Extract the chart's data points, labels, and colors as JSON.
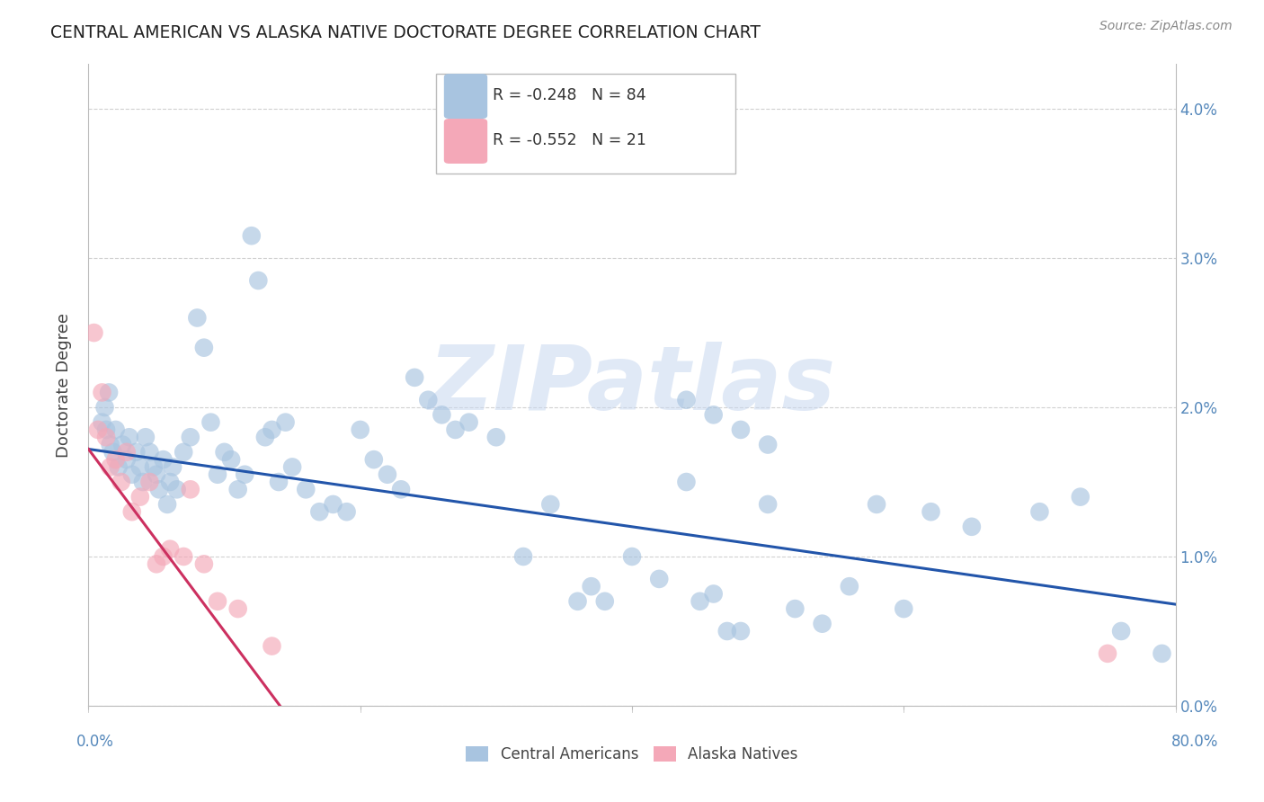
{
  "title": "CENTRAL AMERICAN VS ALASKA NATIVE DOCTORATE DEGREE CORRELATION CHART",
  "source": "Source: ZipAtlas.com",
  "ylabel_label": "Doctorate Degree",
  "xlim": [
    0,
    80
  ],
  "ylim": [
    0,
    4.3
  ],
  "xtick_vals": [
    0,
    20,
    40,
    60,
    80
  ],
  "ytick_vals": [
    0,
    1,
    2,
    3,
    4
  ],
  "legend_blue_R": "-0.248",
  "legend_blue_N": "84",
  "legend_pink_R": "-0.552",
  "legend_pink_N": "21",
  "blue_color": "#a8c4e0",
  "pink_color": "#f4a8b8",
  "blue_line_color": "#2255aa",
  "pink_line_color": "#cc3060",
  "tick_color": "#5588bb",
  "watermark_color": "#c8d8f0",
  "blue_scatter_x": [
    1.0,
    1.2,
    1.3,
    1.5,
    1.6,
    1.8,
    2.0,
    2.2,
    2.5,
    2.8,
    3.0,
    3.2,
    3.5,
    3.8,
    4.0,
    4.2,
    4.5,
    4.8,
    5.0,
    5.2,
    5.5,
    5.8,
    6.0,
    6.2,
    6.5,
    7.0,
    7.5,
    8.0,
    8.5,
    9.0,
    9.5,
    10.0,
    10.5,
    11.0,
    11.5,
    12.0,
    12.5,
    13.0,
    13.5,
    14.0,
    14.5,
    15.0,
    16.0,
    17.0,
    18.0,
    19.0,
    20.0,
    21.0,
    22.0,
    23.0,
    24.0,
    25.0,
    26.0,
    27.0,
    28.0,
    30.0,
    32.0,
    34.0,
    36.0,
    37.0,
    38.0,
    40.0,
    42.0,
    44.0,
    45.0,
    46.0,
    47.0,
    48.0,
    50.0,
    52.0,
    54.0,
    56.0,
    58.0,
    60.0,
    62.0,
    65.0,
    70.0,
    73.0,
    76.0,
    79.0,
    44.0,
    46.0,
    48.0,
    50.0
  ],
  "blue_scatter_y": [
    1.9,
    2.0,
    1.85,
    2.1,
    1.75,
    1.7,
    1.85,
    1.6,
    1.75,
    1.65,
    1.8,
    1.55,
    1.7,
    1.6,
    1.5,
    1.8,
    1.7,
    1.6,
    1.55,
    1.45,
    1.65,
    1.35,
    1.5,
    1.6,
    1.45,
    1.7,
    1.8,
    2.6,
    2.4,
    1.9,
    1.55,
    1.7,
    1.65,
    1.45,
    1.55,
    3.15,
    2.85,
    1.8,
    1.85,
    1.5,
    1.9,
    1.6,
    1.45,
    1.3,
    1.35,
    1.3,
    1.85,
    1.65,
    1.55,
    1.45,
    2.2,
    2.05,
    1.95,
    1.85,
    1.9,
    1.8,
    1.0,
    1.35,
    0.7,
    0.8,
    0.7,
    1.0,
    0.85,
    1.5,
    0.7,
    0.75,
    0.5,
    0.5,
    1.35,
    0.65,
    0.55,
    0.8,
    1.35,
    0.65,
    1.3,
    1.2,
    1.3,
    1.4,
    0.5,
    0.35,
    2.05,
    1.95,
    1.85,
    1.75
  ],
  "pink_scatter_x": [
    0.4,
    0.7,
    1.0,
    1.3,
    1.6,
    2.0,
    2.4,
    2.8,
    3.2,
    3.8,
    4.5,
    5.0,
    5.5,
    6.0,
    7.0,
    7.5,
    8.5,
    9.5,
    11.0,
    13.5,
    75.0
  ],
  "pink_scatter_y": [
    2.5,
    1.85,
    2.1,
    1.8,
    1.6,
    1.65,
    1.5,
    1.7,
    1.3,
    1.4,
    1.5,
    0.95,
    1.0,
    1.05,
    1.0,
    1.45,
    0.95,
    0.7,
    0.65,
    0.4,
    0.35
  ],
  "blue_regline_x": [
    0,
    80
  ],
  "blue_regline_y": [
    1.72,
    0.68
  ],
  "pink_regline_x": [
    0,
    14.5
  ],
  "pink_regline_y": [
    1.72,
    -0.05
  ]
}
